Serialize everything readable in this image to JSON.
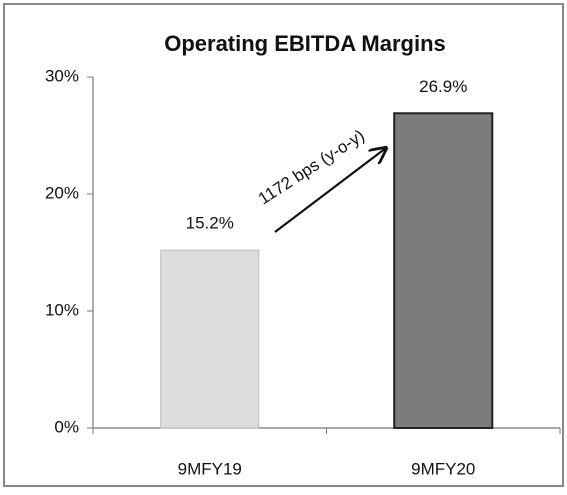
{
  "chart_data": {
    "type": "bar",
    "title": "Operating EBITDA Margins",
    "categories": [
      "9MFY19",
      "9MFY20"
    ],
    "values": [
      15.2,
      26.9
    ],
    "value_labels": [
      "15.2%",
      "26.9%"
    ],
    "colors": [
      "#dcdcdc",
      "#7c7c7c"
    ],
    "annotation": "1172 bps (y-o-y)",
    "ylim": [
      0,
      30
    ],
    "yticks": [
      {
        "value": 0,
        "label": "0%"
      },
      {
        "value": 10,
        "label": "10%"
      },
      {
        "value": 20,
        "label": "20%"
      },
      {
        "value": 30,
        "label": "30%"
      }
    ],
    "grid": false
  }
}
